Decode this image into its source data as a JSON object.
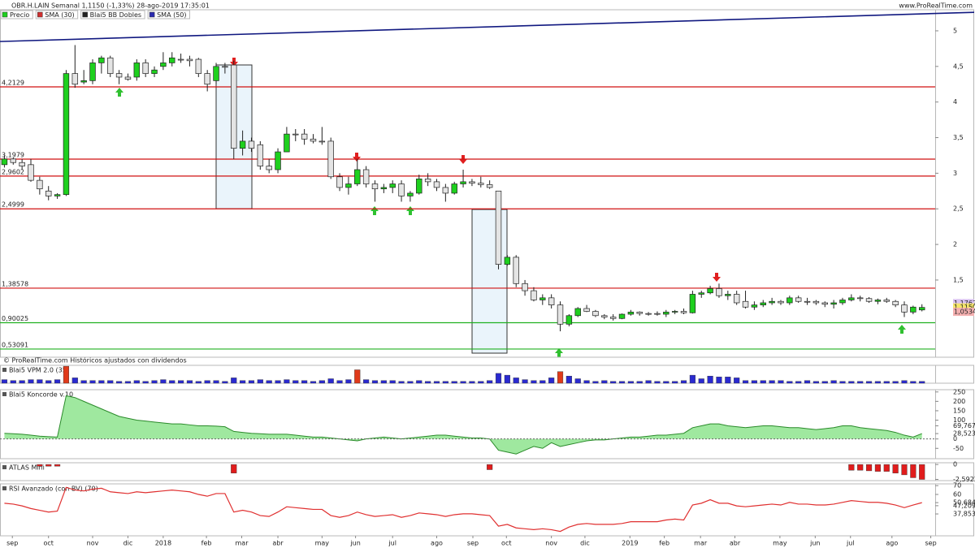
{
  "chart_data": [
    {
      "type": "candlestick",
      "title": "OBR.H.LAIN Semanal 1,1150 (-1,33%) 28-ago-2019 17:35:01",
      "source": "www.ProRealTime.com",
      "note": "© ProRealTime.com Históricos ajustados con dividendos",
      "legend": [
        {
          "name": "Precio",
          "color": "#1ed01e"
        },
        {
          "name": "SMA (30)",
          "color": "#d03030"
        },
        {
          "name": "Blai5 BB Dobles",
          "color": "#222222"
        },
        {
          "name": "SMA (50)",
          "color": "#2a2ab0"
        }
      ],
      "up_color": "#1ed01e",
      "down_color": "#e4e4e4",
      "open": [
        3.12,
        3.2,
        3.15,
        3.12,
        2.9,
        2.75,
        2.68,
        2.7,
        4.4,
        4.28,
        4.3,
        4.55,
        4.62,
        4.4,
        4.35,
        4.35,
        4.55,
        4.4,
        4.5,
        4.55,
        4.6,
        4.6,
        4.6,
        4.4,
        4.3,
        4.5,
        4.52,
        3.35,
        3.45,
        3.4,
        3.1,
        3.05,
        3.3,
        3.55,
        3.55,
        3.48,
        3.45,
        3.45,
        2.95,
        2.8,
        2.85,
        3.05,
        2.85,
        2.78,
        2.8,
        2.85,
        2.68,
        2.72,
        2.92,
        2.88,
        2.8,
        2.72,
        2.85,
        2.88,
        2.86,
        2.84,
        2.75,
        1.72,
        1.82,
        1.45,
        1.35,
        1.22,
        1.25,
        1.15,
        0.88,
        1.0,
        1.1,
        1.06,
        1.0,
        0.98,
        0.96,
        1.02,
        1.05,
        1.03,
        1.03,
        1.02,
        1.05,
        1.06,
        1.04,
        1.3,
        1.32,
        1.38,
        1.28,
        1.3,
        1.2,
        1.12,
        1.15,
        1.18,
        1.2,
        1.18,
        1.25,
        1.2,
        1.2,
        1.18,
        1.16,
        1.18,
        1.22,
        1.25,
        1.24,
        1.2,
        1.22,
        1.2,
        1.15,
        1.05,
        1.08
      ],
      "high": [
        3.25,
        3.22,
        3.2,
        3.2,
        2.95,
        2.82,
        2.72,
        4.45,
        4.8,
        4.45,
        4.6,
        4.65,
        4.65,
        4.45,
        4.4,
        4.6,
        4.6,
        4.5,
        4.7,
        4.7,
        4.68,
        4.65,
        4.62,
        4.45,
        4.55,
        4.55,
        4.58,
        3.6,
        3.5,
        3.45,
        3.2,
        3.35,
        3.65,
        3.62,
        3.62,
        3.55,
        3.65,
        3.5,
        3.0,
        2.95,
        3.2,
        3.1,
        2.9,
        2.85,
        2.9,
        2.9,
        2.75,
        2.98,
        3.0,
        2.92,
        2.85,
        2.88,
        3.05,
        2.92,
        2.95,
        2.9,
        2.75,
        1.85,
        1.85,
        1.5,
        1.4,
        1.3,
        1.3,
        1.2,
        1.02,
        1.12,
        1.15,
        1.08,
        1.02,
        1.02,
        1.03,
        1.08,
        1.06,
        1.05,
        1.06,
        1.08,
        1.08,
        1.1,
        1.35,
        1.35,
        1.42,
        1.45,
        1.35,
        1.35,
        1.35,
        1.2,
        1.22,
        1.25,
        1.22,
        1.28,
        1.28,
        1.25,
        1.22,
        1.2,
        1.22,
        1.25,
        1.3,
        1.28,
        1.26,
        1.24,
        1.25,
        1.22,
        1.2,
        1.14,
        1.16
      ],
      "low": [
        3.08,
        3.12,
        3.05,
        2.88,
        2.7,
        2.62,
        2.64,
        2.68,
        4.2,
        4.25,
        4.25,
        4.4,
        4.35,
        4.25,
        4.3,
        4.3,
        4.35,
        4.35,
        4.45,
        4.5,
        4.55,
        4.5,
        4.35,
        4.15,
        4.25,
        4.4,
        3.2,
        3.25,
        3.3,
        3.05,
        3.0,
        3.0,
        3.3,
        3.45,
        3.4,
        3.42,
        3.4,
        2.92,
        2.75,
        2.7,
        2.82,
        2.8,
        2.6,
        2.72,
        2.72,
        2.6,
        2.6,
        2.7,
        2.82,
        2.75,
        2.6,
        2.7,
        2.8,
        2.82,
        2.8,
        2.78,
        1.65,
        1.7,
        1.4,
        1.28,
        1.2,
        1.15,
        1.1,
        0.78,
        0.85,
        0.98,
        1.05,
        0.98,
        0.95,
        0.93,
        0.95,
        1.0,
        1.0,
        1.0,
        1.0,
        0.98,
        1.02,
        1.02,
        1.03,
        1.25,
        1.3,
        1.25,
        1.22,
        1.15,
        1.1,
        1.08,
        1.12,
        1.15,
        1.15,
        1.15,
        1.18,
        1.15,
        1.15,
        1.12,
        1.1,
        1.15,
        1.2,
        1.2,
        1.18,
        1.16,
        1.18,
        1.12,
        0.98,
        1.02,
        1.06
      ],
      "close": [
        3.2,
        3.15,
        3.1,
        2.9,
        2.78,
        2.68,
        2.7,
        4.4,
        4.25,
        4.3,
        4.55,
        4.62,
        4.4,
        4.35,
        4.32,
        4.55,
        4.4,
        4.45,
        4.55,
        4.62,
        4.6,
        4.58,
        4.4,
        4.25,
        4.5,
        4.5,
        3.35,
        3.45,
        3.35,
        3.1,
        3.05,
        3.3,
        3.55,
        3.55,
        3.48,
        3.45,
        3.45,
        2.95,
        2.8,
        2.85,
        3.05,
        2.85,
        2.78,
        2.8,
        2.85,
        2.68,
        2.72,
        2.92,
        2.88,
        2.8,
        2.72,
        2.85,
        2.88,
        2.86,
        2.84,
        2.8,
        1.72,
        1.82,
        1.45,
        1.35,
        1.22,
        1.25,
        1.15,
        0.88,
        1.0,
        1.1,
        1.06,
        1.0,
        0.98,
        0.96,
        1.02,
        1.05,
        1.03,
        1.03,
        1.02,
        1.05,
        1.06,
        1.04,
        1.3,
        1.32,
        1.38,
        1.28,
        1.3,
        1.18,
        1.12,
        1.15,
        1.18,
        1.2,
        1.18,
        1.25,
        1.2,
        1.2,
        1.18,
        1.16,
        1.18,
        1.22,
        1.25,
        1.24,
        1.2,
        1.22,
        1.2,
        1.15,
        1.05,
        1.12,
        1.115
      ],
      "levels": [
        {
          "value": 4.2129,
          "label": "4,2129",
          "color": "#d01010"
        },
        {
          "value": 3.1979,
          "label": "3,1979",
          "color": "#d01010"
        },
        {
          "value": 2.9602,
          "label": "2,9602",
          "color": "#d01010"
        },
        {
          "value": 2.4999,
          "label": "2,4999",
          "color": "#d01010"
        },
        {
          "value": 1.38578,
          "label": "1,38578",
          "color": "#d01010"
        },
        {
          "value": 0.90025,
          "label": "0,90025",
          "color": "#20b020"
        },
        {
          "value": 0.53091,
          "label": "0,53091",
          "color": "#20b020"
        }
      ],
      "trendline": [
        4.85,
        5.26
      ],
      "trendline_color": "#101880",
      "price_tags": [
        {
          "value": 1.1762,
          "label": "1,1762",
          "color": "#d9c2f0"
        },
        {
          "value": 1.115,
          "label": "1,1150",
          "color": "#f5e56a"
        },
        {
          "value": 1.0534,
          "label": "1,0534",
          "color": "#f4b0b0"
        }
      ],
      "xlim": [
        -0.5,
        105.5
      ],
      "xticks": [
        {
          "value": 0.9,
          "label": "sep"
        },
        {
          "value": 5,
          "label": "oct"
        },
        {
          "value": 10,
          "label": "nov"
        },
        {
          "value": 14,
          "label": "dic"
        },
        {
          "value": 18,
          "label": "2018"
        },
        {
          "value": 22.9,
          "label": "feb"
        },
        {
          "value": 26.9,
          "label": "mar"
        },
        {
          "value": 31,
          "label": "abr"
        },
        {
          "value": 36,
          "label": "may"
        },
        {
          "value": 39.8,
          "label": "jun"
        },
        {
          "value": 44,
          "label": "jul"
        },
        {
          "value": 49,
          "label": "ago"
        },
        {
          "value": 53.1,
          "label": "sep"
        },
        {
          "value": 56.9,
          "label": "oct"
        },
        {
          "value": 62,
          "label": "nov"
        },
        {
          "value": 65.8,
          "label": "dic"
        },
        {
          "value": 70.9,
          "label": "2019"
        },
        {
          "value": 74.8,
          "label": "feb"
        },
        {
          "value": 78.9,
          "label": "mar"
        },
        {
          "value": 82.8,
          "label": "abr"
        },
        {
          "value": 87.9,
          "label": "may"
        },
        {
          "value": 91.9,
          "label": "jun"
        },
        {
          "value": 95.9,
          "label": "jul"
        },
        {
          "value": 100.6,
          "label": "ago"
        },
        {
          "value": 105,
          "label": "sep"
        }
      ],
      "ylim": [
        0.416,
        5.296
      ],
      "yticks": [
        5,
        {
          "value": 4.5,
          "label": "4,5"
        },
        4,
        {
          "value": 3.5,
          "label": "3,5"
        },
        3,
        {
          "value": 2.5,
          "label": "2,5"
        },
        2,
        {
          "value": 1.5,
          "label": "1,5"
        }
      ]
    },
    {
      "type": "bar",
      "title": "Blai5 VPM 2.0 (35)",
      "ylim": [
        0,
        1
      ],
      "series": [
        {
          "color": "#2a2ad0",
          "values": [
            0.2,
            0.15,
            0.15,
            0.2,
            0.2,
            0.15,
            0.2,
            null,
            0.3,
            0.15,
            0.15,
            0.15,
            0.15,
            0.1,
            0.1,
            0.15,
            0.1,
            0.15,
            0.2,
            0.15,
            0.15,
            0.15,
            0.1,
            0.15,
            0.15,
            0.1,
            0.3,
            0.15,
            0.15,
            0.2,
            0.15,
            0.15,
            0.2,
            0.15,
            0.15,
            0.1,
            0.15,
            0.25,
            0.15,
            0.2,
            null,
            0.2,
            0.15,
            0.15,
            0.15,
            0.1,
            0.1,
            0.15,
            0.1,
            0.1,
            0.1,
            0.1,
            0.1,
            0.1,
            0.1,
            0.15,
            0.55,
            0.45,
            0.3,
            0.2,
            0.15,
            0.15,
            0.3,
            null,
            0.4,
            0.25,
            0.15,
            0.1,
            0.15,
            0.1,
            0.1,
            0.1,
            0.1,
            0.15,
            0.1,
            0.1,
            0.1,
            0.15,
            0.45,
            0.25,
            0.4,
            0.35,
            0.35,
            0.3,
            0.15,
            0.15,
            0.15,
            0.15,
            0.15,
            0.1,
            0.1,
            0.15,
            0.1,
            0.1,
            0.15,
            0.1,
            0.1,
            0.1,
            0.1,
            0.1,
            0.1,
            0.1,
            0.15,
            0.1,
            0.1
          ]
        },
        {
          "color": "#e03a1a",
          "values": [
            null,
            null,
            null,
            null,
            null,
            null,
            null,
            0.95,
            null,
            null,
            null,
            null,
            null,
            null,
            null,
            null,
            null,
            null,
            null,
            null,
            null,
            null,
            null,
            null,
            null,
            null,
            null,
            null,
            null,
            null,
            null,
            null,
            null,
            null,
            null,
            null,
            null,
            null,
            null,
            null,
            0.75,
            null,
            null,
            null,
            null,
            null,
            null,
            null,
            null,
            null,
            null,
            null,
            null,
            null,
            null,
            null,
            null,
            null,
            null,
            null,
            null,
            null,
            null,
            0.65,
            null,
            null,
            null,
            null,
            null,
            null,
            null,
            null,
            null,
            null,
            null,
            null,
            null,
            null,
            null,
            null,
            null,
            null,
            null,
            null,
            null,
            null,
            null,
            null,
            null,
            null,
            null,
            null,
            null,
            null,
            null,
            null,
            null,
            null,
            null,
            null,
            null,
            null,
            null,
            null,
            null
          ]
        }
      ]
    },
    {
      "type": "area",
      "title": "Blai5 Koncorde v.10",
      "color": "#7fe07f",
      "line_color": "#2a8a2a",
      "values": [
        30,
        28,
        25,
        20,
        15,
        12,
        10,
        230,
        220,
        200,
        180,
        160,
        140,
        120,
        110,
        100,
        95,
        90,
        85,
        80,
        80,
        75,
        70,
        70,
        68,
        65,
        40,
        35,
        30,
        28,
        25,
        25,
        25,
        20,
        15,
        10,
        10,
        5,
        0,
        -5,
        -10,
        0,
        5,
        10,
        5,
        0,
        5,
        10,
        15,
        20,
        20,
        15,
        10,
        5,
        5,
        0,
        -60,
        -70,
        -80,
        -60,
        -40,
        -50,
        -20,
        -40,
        -30,
        -20,
        -10,
        -5,
        -5,
        0,
        5,
        10,
        10,
        15,
        20,
        20,
        25,
        30,
        60,
        70,
        80,
        80,
        70,
        65,
        60,
        65,
        70,
        70,
        65,
        60,
        60,
        55,
        50,
        55,
        60,
        70,
        70,
        60,
        55,
        50,
        45,
        35,
        20,
        10,
        28.523
      ],
      "ylim": [
        -105,
        262
      ],
      "yticks": [
        250,
        200,
        150,
        100,
        {
          "value": 69.767,
          "label": "69,767"
        },
        {
          "value": 28.523,
          "label": "28,523"
        },
        0,
        -50
      ]
    },
    {
      "type": "bar",
      "title": "ATLAS Mini",
      "color": "#e01c1c",
      "values": [
        null,
        null,
        null,
        null,
        -0.3,
        -0.3,
        -0.3,
        null,
        null,
        null,
        null,
        null,
        null,
        null,
        null,
        null,
        null,
        null,
        null,
        null,
        null,
        null,
        null,
        null,
        null,
        null,
        -1.5,
        null,
        null,
        null,
        null,
        null,
        null,
        null,
        null,
        null,
        null,
        null,
        null,
        null,
        null,
        null,
        null,
        null,
        null,
        null,
        null,
        null,
        null,
        null,
        null,
        null,
        null,
        null,
        null,
        -0.9,
        null,
        null,
        null,
        null,
        null,
        null,
        null,
        null,
        null,
        null,
        null,
        null,
        null,
        null,
        null,
        null,
        null,
        null,
        null,
        null,
        null,
        null,
        null,
        null,
        null,
        null,
        null,
        null,
        null,
        null,
        null,
        null,
        null,
        null,
        null,
        null,
        null,
        null,
        null,
        null,
        -1.0,
        -1.0,
        -1.1,
        -1.2,
        -1.2,
        -1.5,
        -1.8,
        -2.3,
        -2.5922
      ],
      "ylim": [
        -2.8,
        0.3
      ],
      "yticks": [
        0,
        {
          "value": -2.5922,
          "label": "-2,5922"
        }
      ]
    },
    {
      "type": "line",
      "title": "RSI Avanzado (con BV) (70)",
      "color": "#e03030",
      "values": [
        50,
        49,
        47,
        44,
        42,
        40,
        41,
        68,
        65,
        64,
        66,
        67,
        63,
        62,
        61,
        63,
        62,
        63,
        64,
        65,
        64,
        63,
        60,
        58,
        61,
        61,
        40,
        42,
        40,
        36,
        35,
        40,
        46,
        45,
        44,
        43,
        43,
        36,
        34,
        36,
        40,
        37,
        35,
        36,
        37,
        34,
        36,
        39,
        38,
        37,
        35,
        37,
        38,
        38,
        37,
        36,
        24,
        26,
        22,
        21,
        20,
        21,
        20,
        18,
        23,
        26,
        27,
        26,
        26,
        26,
        27,
        29,
        29,
        29,
        29,
        31,
        32,
        31,
        48,
        50,
        54,
        50,
        50,
        47,
        46,
        47,
        48,
        49,
        48,
        51,
        49,
        49,
        48,
        48,
        49,
        51,
        53,
        52,
        51,
        51,
        50,
        48,
        45,
        48,
        50.684
      ],
      "ylim": [
        13,
        72
      ],
      "yticks": [
        70,
        60,
        {
          "value": 50.684,
          "label": "50,684"
        },
        {
          "value": 47.209,
          "label": "47,209"
        },
        {
          "value": 37.853,
          "label": "37,853"
        }
      ]
    }
  ]
}
